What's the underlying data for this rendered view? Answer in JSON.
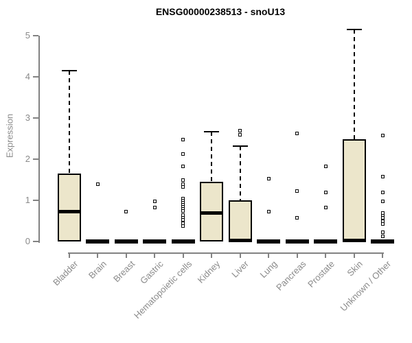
{
  "colors": {
    "background": "#FFFFFF",
    "box_fill": "#ECE6CB",
    "box_border": "#000000",
    "median": "#000000",
    "axis": "#828282",
    "tick_label": "#8A8A8A",
    "title": "#000000"
  },
  "chart_data": {
    "type": "boxplot",
    "title": "ENSG00000238513 - snoU13",
    "xlabel": "",
    "ylabel": "Expression",
    "ylim": [
      0,
      5.2
    ],
    "y_ticks": [
      0,
      1,
      2,
      3,
      4,
      5
    ],
    "grid": false,
    "marker": "open-square",
    "categories": [
      "Bladder",
      "Brain",
      "Breast",
      "Gastric",
      "Hematopoietic cells",
      "Kidney",
      "Liver",
      "Lung",
      "Pancreas",
      "Prostate",
      "Skin",
      "Unknown / Other"
    ],
    "boxes": [
      {
        "category": "Bladder",
        "whisker_low": 0,
        "q1": 0,
        "median": 0.73,
        "q3": 1.65,
        "whisker_high": 4.15,
        "outliers": []
      },
      {
        "category": "Brain",
        "whisker_low": 0,
        "q1": 0,
        "median": 0,
        "q3": 0,
        "whisker_high": 0,
        "outliers": [
          1.4
        ]
      },
      {
        "category": "Breast",
        "whisker_low": 0,
        "q1": 0,
        "median": 0,
        "q3": 0,
        "whisker_high": 0,
        "outliers": [
          0.73
        ]
      },
      {
        "category": "Gastric",
        "whisker_low": 0,
        "q1": 0,
        "median": 0,
        "q3": 0,
        "whisker_high": 0,
        "outliers": [
          0.97,
          0.83
        ]
      },
      {
        "category": "Hematopoietic cells",
        "whisker_low": 0,
        "q1": 0,
        "median": 0,
        "q3": 0,
        "whisker_high": 0,
        "outliers": [
          2.48,
          2.12,
          1.83,
          1.5,
          1.4,
          1.32,
          1.05,
          1.0,
          0.95,
          0.9,
          0.85,
          0.8,
          0.75,
          0.65,
          0.58,
          0.52,
          0.45,
          0.37
        ]
      },
      {
        "category": "Kidney",
        "whisker_low": 0,
        "q1": 0,
        "median": 0.7,
        "q3": 1.45,
        "whisker_high": 2.67,
        "outliers": []
      },
      {
        "category": "Liver",
        "whisker_low": 0,
        "q1": 0,
        "median": 0.03,
        "q3": 1.0,
        "whisker_high": 2.32,
        "outliers": [
          2.7,
          2.6
        ]
      },
      {
        "category": "Lung",
        "whisker_low": 0,
        "q1": 0,
        "median": 0,
        "q3": 0,
        "whisker_high": 0,
        "outliers": [
          1.52,
          0.72
        ]
      },
      {
        "category": "Pancreas",
        "whisker_low": 0,
        "q1": 0,
        "median": 0,
        "q3": 0,
        "whisker_high": 0,
        "outliers": [
          2.63,
          1.22,
          0.57
        ]
      },
      {
        "category": "Prostate",
        "whisker_low": 0,
        "q1": 0,
        "median": 0,
        "q3": 0,
        "whisker_high": 0,
        "outliers": [
          1.82,
          1.2,
          0.83
        ]
      },
      {
        "category": "Skin",
        "whisker_low": 0,
        "q1": 0,
        "median": 0.03,
        "q3": 2.48,
        "whisker_high": 5.15,
        "outliers": []
      },
      {
        "category": "Unknown / Other",
        "whisker_low": 0,
        "q1": 0,
        "median": 0,
        "q3": 0,
        "whisker_high": 0,
        "outliers": [
          2.57,
          1.57,
          1.2,
          0.98,
          0.7,
          0.63,
          0.57,
          0.5,
          0.43,
          0.23,
          0.12
        ]
      }
    ]
  }
}
